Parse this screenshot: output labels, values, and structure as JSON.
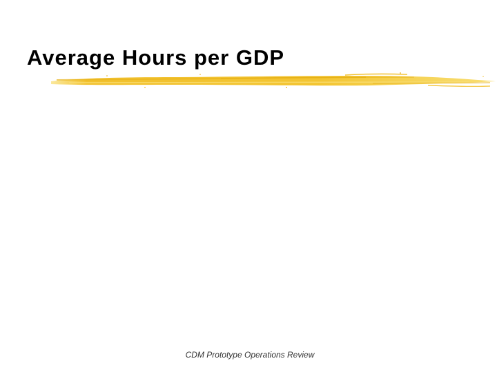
{
  "slide": {
    "title": "Average Hours per GDP",
    "footer": "CDM Prototype Operations Review"
  },
  "colors": {
    "background": "#ffffff",
    "title_text": "#000000",
    "accent_brush": "#f2c12e",
    "accent_brush_light": "#f7d85a",
    "footer_text": "#333333"
  }
}
